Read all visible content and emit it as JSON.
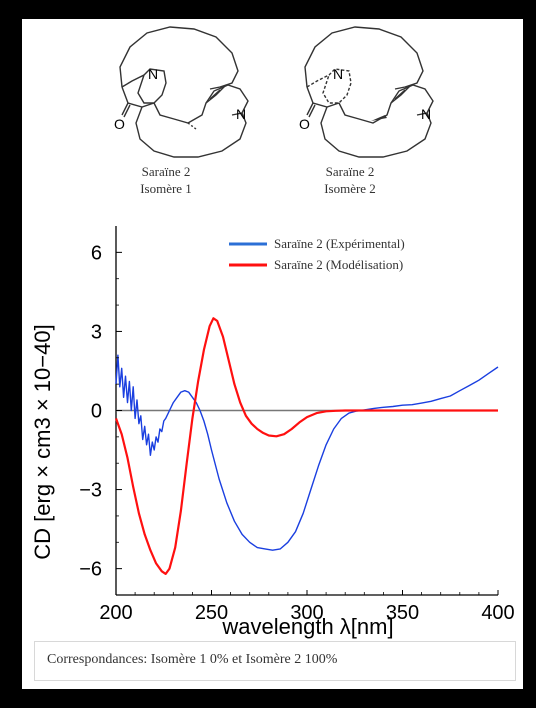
{
  "structures": [
    {
      "name_line1": "Saraïne 2",
      "name_line2": "Isomère 1",
      "atom_labels": [
        "O",
        "N",
        "N"
      ]
    },
    {
      "name_line1": "Saraïne 2",
      "name_line2": "Isomère 2",
      "atom_labels": [
        "O",
        "N",
        "N"
      ]
    }
  ],
  "chart_data": {
    "type": "line",
    "xlabel": "wavelength λ[nm]",
    "ylabel": "CD [erg × cm3 × 10−40]",
    "xlim": [
      200,
      400
    ],
    "ylim": [
      -7,
      7
    ],
    "x_ticks": [
      "200",
      "250",
      "300",
      "350",
      "400"
    ],
    "y_ticks": [
      "6",
      "3",
      "0",
      "−3",
      "−6"
    ],
    "legend_position": "top-right",
    "series": [
      {
        "name": "Saraïne 2 (Expérimental)",
        "color": "#1a3fe0",
        "legend_color": "#2b6fd6",
        "x": [
          200,
          201,
          202,
          203,
          204,
          205,
          206,
          207,
          208,
          209,
          210,
          211,
          212,
          213,
          214,
          215,
          216,
          217,
          218,
          219,
          220,
          221,
          222,
          223,
          224,
          225,
          226,
          228,
          230,
          232,
          234,
          236,
          238,
          240,
          242,
          244,
          246,
          248,
          250,
          254,
          258,
          262,
          266,
          270,
          274,
          278,
          282,
          286,
          290,
          294,
          298,
          302,
          306,
          310,
          314,
          318,
          322,
          326,
          330,
          335,
          340,
          345,
          350,
          355,
          360,
          365,
          370,
          375,
          380,
          385,
          390,
          395,
          400
        ],
        "y": [
          1.0,
          2.1,
          0.9,
          1.6,
          0.5,
          1.3,
          0.3,
          1.1,
          0.0,
          0.9,
          -0.3,
          0.4,
          -0.5,
          -0.2,
          -1.1,
          -0.6,
          -1.3,
          -0.9,
          -1.7,
          -1.2,
          -1.5,
          -1.0,
          -1.2,
          -0.7,
          -0.8,
          -0.4,
          -0.3,
          0.0,
          0.3,
          0.5,
          0.7,
          0.75,
          0.7,
          0.5,
          0.3,
          0.0,
          -0.4,
          -0.9,
          -1.5,
          -2.6,
          -3.5,
          -4.2,
          -4.7,
          -5.0,
          -5.2,
          -5.25,
          -5.3,
          -5.25,
          -5.0,
          -4.6,
          -3.9,
          -3.0,
          -2.1,
          -1.3,
          -0.7,
          -0.3,
          -0.1,
          -0.02,
          0.02,
          0.08,
          0.12,
          0.15,
          0.2,
          0.22,
          0.28,
          0.35,
          0.45,
          0.55,
          0.75,
          0.95,
          1.15,
          1.4,
          1.65
        ]
      },
      {
        "name": "Saraïne 2 (Modélisation)",
        "color": "#ff1010",
        "legend_color": "#ff1010",
        "x": [
          200,
          203,
          206,
          209,
          212,
          215,
          218,
          221,
          224,
          226,
          228,
          231,
          234,
          237,
          240,
          243,
          246,
          249,
          251,
          253,
          256,
          259,
          262,
          265,
          268,
          271,
          274,
          277,
          280,
          284,
          288,
          292,
          296,
          300,
          305,
          310,
          315,
          320,
          330,
          340,
          360,
          380,
          400
        ],
        "y": [
          -0.3,
          -0.9,
          -1.8,
          -2.9,
          -3.9,
          -4.7,
          -5.3,
          -5.8,
          -6.1,
          -6.2,
          -6.0,
          -5.2,
          -3.8,
          -2.0,
          -0.3,
          1.1,
          2.3,
          3.2,
          3.5,
          3.4,
          2.8,
          1.9,
          1.0,
          0.3,
          -0.2,
          -0.5,
          -0.7,
          -0.85,
          -0.95,
          -0.98,
          -0.9,
          -0.7,
          -0.45,
          -0.25,
          -0.1,
          -0.03,
          -0.01,
          0.0,
          0.0,
          0.0,
          0.0,
          0.0,
          0.0
        ]
      }
    ],
    "zero_line_color": "#777777"
  },
  "caption": "Correspondances: Isomère 1 0% et Isomère 2 100%"
}
